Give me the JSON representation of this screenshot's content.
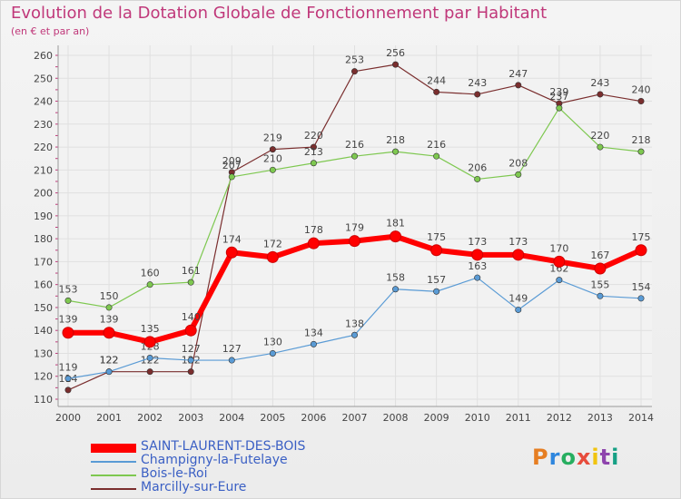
{
  "header": {
    "title": "Evolution de la Dotation Globale de Fonctionnement par Habitant",
    "subtitle": "(en € et par an)"
  },
  "logo": {
    "text": "Proxiti",
    "colors": [
      "#e67e22",
      "#2e86de",
      "#27ae60",
      "#e74c3c",
      "#f1c40f",
      "#8e44ad",
      "#16a085"
    ]
  },
  "chart_data": {
    "type": "line",
    "x": [
      "2000",
      "2001",
      "2002",
      "2003",
      "2004",
      "2005",
      "2006",
      "2007",
      "2008",
      "2009",
      "2010",
      "2011",
      "2012",
      "2013",
      "2014"
    ],
    "ylim": [
      110,
      260
    ],
    "yticks": [
      110,
      120,
      130,
      140,
      150,
      160,
      170,
      180,
      190,
      200,
      210,
      220,
      230,
      240,
      250,
      260
    ],
    "grid": true,
    "legend_position": "bottom-left",
    "series": [
      {
        "name": "SAINT-LAURENT-DES-BOIS",
        "color": "#ff0000",
        "values": [
          139,
          139,
          135,
          140,
          174,
          172,
          178,
          179,
          181,
          175,
          173,
          173,
          170,
          167,
          175
        ],
        "labels": [
          "139",
          "139",
          "135",
          "140",
          "174",
          "172",
          "178",
          "179",
          "181",
          "175",
          "173",
          "173",
          "170",
          "167",
          "175"
        ]
      },
      {
        "name": "Champigny-la-Futelaye",
        "color": "#5a9bd5",
        "values": [
          119,
          122,
          128,
          127,
          127,
          130,
          134,
          138,
          158,
          157,
          163,
          149,
          162,
          155,
          154
        ],
        "labels": [
          "119",
          "122",
          "128",
          "127",
          "127",
          "130",
          "134",
          "138",
          "158",
          "157",
          "163",
          "149",
          "162",
          "155",
          "154"
        ]
      },
      {
        "name": "Bois-le-Roi",
        "color": "#7ec850",
        "values": [
          153,
          150,
          160,
          161,
          207,
          210,
          213,
          216,
          218,
          216,
          206,
          208,
          237,
          220,
          218
        ],
        "labels": [
          "153",
          "150",
          "160",
          "161",
          "207",
          "210",
          "213",
          "216",
          "218",
          "216",
          "206",
          "208",
          "237",
          "220",
          "218"
        ]
      },
      {
        "name": "Marcilly-sur-Eure",
        "color": "#7a2e2e",
        "values": [
          114,
          122,
          122,
          122,
          209,
          219,
          220,
          253,
          256,
          244,
          243,
          247,
          239,
          243,
          240
        ],
        "labels": [
          "114",
          "122",
          "122",
          "122",
          "209",
          "219",
          "220",
          "253",
          "256",
          "244",
          "243",
          "247",
          "239",
          "243",
          "240"
        ]
      }
    ]
  }
}
